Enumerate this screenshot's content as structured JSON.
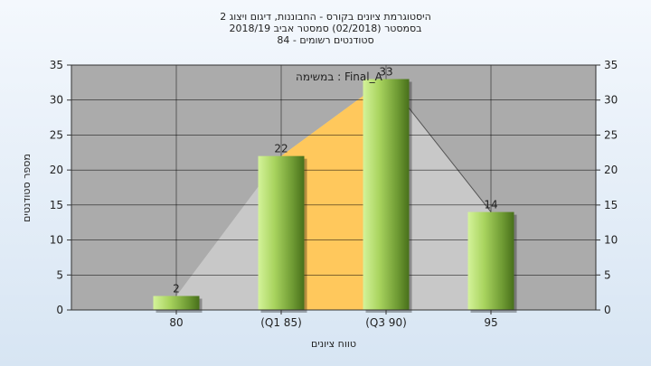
{
  "chart_data": {
    "type": "bar",
    "title_lines": [
      "היסטוגרמת ציונים בקורס - החבוננות, דיגום ויצוג 2",
      "בסמסטר  (02/2018)  סמסטר אביב 2018/19",
      "סטודנטים רשומים - 84"
    ],
    "annotation": "במשימה : Final_A",
    "categories": [
      "80",
      "(Q1 85)",
      "(Q3 90)",
      "95"
    ],
    "values": [
      2,
      22,
      33,
      14
    ],
    "xlabel": "טווח ציונים",
    "ylabel": "מספר סטודנטים",
    "ylim": [
      0,
      35
    ],
    "yticks": [
      "0",
      "5",
      "10",
      "15",
      "20",
      "25",
      "30",
      "35"
    ],
    "grid": true,
    "colors": {
      "plot_bg": "#ababab",
      "grey_area": "#c8c8c8",
      "quartile_area": "#ffc85c",
      "bar_light": "#c8ec8a",
      "bar_dark": "#4e7a1e"
    }
  }
}
